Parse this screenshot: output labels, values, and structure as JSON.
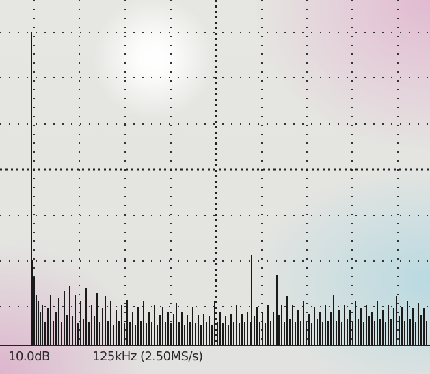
{
  "readout": {
    "scale": "10.0dB",
    "span": "125kHz (2.50MS/s)"
  }
}
